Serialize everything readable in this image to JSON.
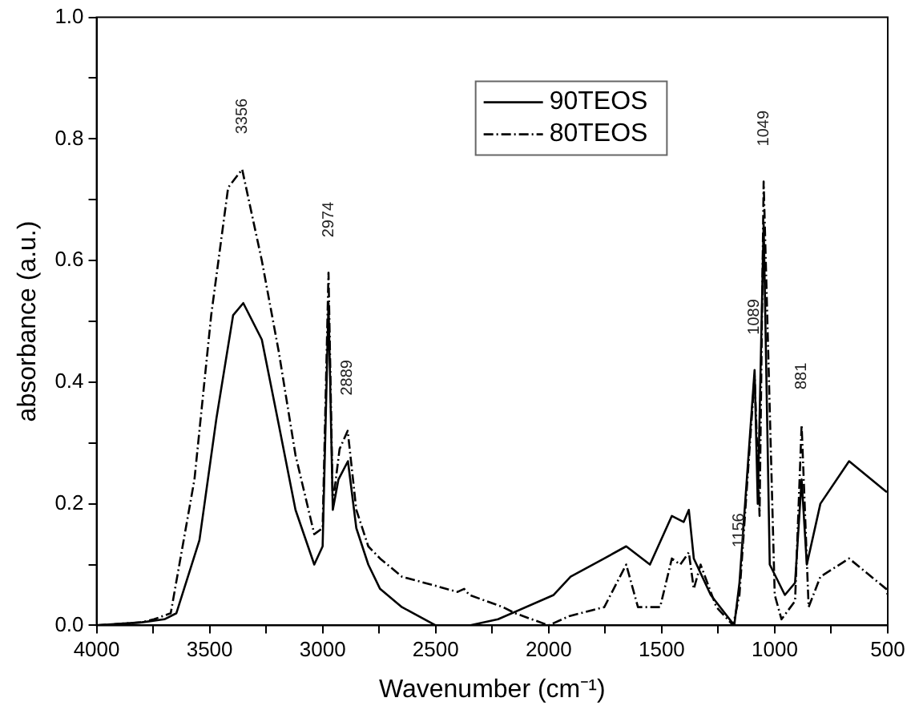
{
  "chart_data": {
    "type": "line",
    "xlabel": "Wavenumber (cm⁻¹)",
    "ylabel": "absorbance (a.u.)",
    "xlim": [
      4000,
      500
    ],
    "ylim": [
      0,
      1.0
    ],
    "xticks": [
      4000,
      {
        "value": 3750,
        "label": null
      },
      3500,
      {
        "value": 3250,
        "label": null
      },
      3000,
      {
        "value": 2750,
        "label": null
      },
      2500,
      {
        "value": 2250,
        "label": null
      },
      2000,
      {
        "value": 1750,
        "label": null
      },
      1500,
      {
        "value": 1250,
        "label": null
      },
      1000,
      {
        "value": 750,
        "label": null
      },
      500
    ],
    "yticks": [
      {
        "value": 0,
        "label": "0.0"
      },
      {
        "value": 0.1,
        "label": null
      },
      {
        "value": 0.2,
        "label": "0.2"
      },
      {
        "value": 0.3,
        "label": null
      },
      {
        "value": 0.4,
        "label": "0.4"
      },
      {
        "value": 0.5,
        "label": null
      },
      {
        "value": 0.6,
        "label": "0.6"
      },
      {
        "value": 0.7,
        "label": null
      },
      {
        "value": 0.8,
        "label": "0.8"
      },
      {
        "value": 0.9,
        "label": null
      },
      {
        "value": 1.0,
        "label": "1.0"
      }
    ],
    "grid": false,
    "legend": "top",
    "marker": "none",
    "series": [
      {
        "name": "90TEOS",
        "color": "#000000",
        "line_style": "solid",
        "x": [
          4000,
          3800,
          3700,
          3647,
          3545,
          3470,
          3396,
          3351,
          3269,
          3194,
          3120,
          3037,
          3000,
          2974,
          2955,
          2930,
          2888,
          2851,
          2798,
          2746,
          2649,
          2500,
          2350,
          2224,
          1978,
          1903,
          1754,
          1657,
          1552,
          1455,
          1403,
          1380,
          1358,
          1283,
          1179,
          1156,
          1089,
          1075,
          1049,
          1022,
          955,
          910,
          881,
          858,
          798,
          671,
          507,
          500
        ],
        "values": [
          0,
          0.005,
          0.01,
          0.02,
          0.14,
          0.34,
          0.51,
          0.53,
          0.47,
          0.33,
          0.19,
          0.1,
          0.13,
          0.53,
          0.19,
          0.24,
          0.27,
          0.16,
          0.1,
          0.06,
          0.03,
          0.0,
          0.0,
          0.01,
          0.05,
          0.08,
          0.11,
          0.13,
          0.1,
          0.18,
          0.17,
          0.19,
          0.11,
          0.05,
          0.0,
          0.07,
          0.42,
          0.2,
          0.66,
          0.1,
          0.05,
          0.07,
          0.24,
          0.1,
          0.2,
          0.27,
          0.22,
          0.22
        ]
      },
      {
        "name": "80TEOS",
        "color": "#000000",
        "line_style": "dashed",
        "x": [
          4000,
          3800,
          3746,
          3672,
          3567,
          3493,
          3418,
          3356,
          3269,
          3194,
          3120,
          3037,
          3000,
          2974,
          2955,
          2925,
          2889,
          2851,
          2798,
          2746,
          2649,
          2500,
          2403,
          2374,
          2351,
          2202,
          2149,
          2000,
          1910,
          1754,
          1657,
          1605,
          1507,
          1455,
          1418,
          1380,
          1358,
          1328,
          1258,
          1184,
          1156,
          1089,
          1067,
          1049,
          1000,
          970,
          910,
          881,
          850,
          798,
          671,
          507,
          500
        ],
        "values": [
          0,
          0.005,
          0.01,
          0.02,
          0.24,
          0.51,
          0.72,
          0.75,
          0.6,
          0.45,
          0.28,
          0.15,
          0.16,
          0.58,
          0.2,
          0.29,
          0.32,
          0.19,
          0.13,
          0.11,
          0.08,
          0.065,
          0.055,
          0.06,
          0.05,
          0.03,
          0.02,
          0.0,
          0.015,
          0.03,
          0.1,
          0.03,
          0.03,
          0.11,
          0.1,
          0.12,
          0.06,
          0.1,
          0.03,
          0.0,
          0.05,
          0.41,
          0.18,
          0.73,
          0.05,
          0.01,
          0.04,
          0.33,
          0.03,
          0.08,
          0.11,
          0.06,
          0.05
        ]
      }
    ],
    "annotations": [
      {
        "text": "3356",
        "x": 3356,
        "y": 0.75
      },
      {
        "text": "2974",
        "x": 2974,
        "y": 0.58
      },
      {
        "text": "2889",
        "x": 2889,
        "y": 0.32
      },
      {
        "text": "1156",
        "x": 1156,
        "y": 0.07
      },
      {
        "text": "1089",
        "x": 1089,
        "y": 0.42
      },
      {
        "text": "1049",
        "x": 1049,
        "y": 0.73
      },
      {
        "text": "881",
        "x": 881,
        "y": 0.33
      }
    ]
  }
}
